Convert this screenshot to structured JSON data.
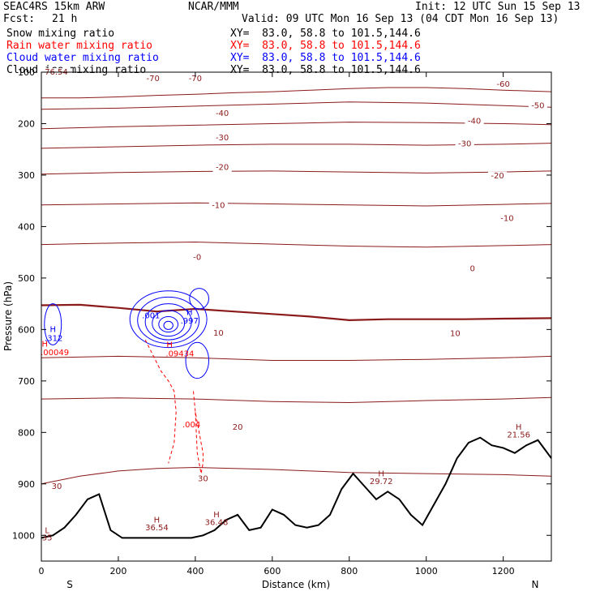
{
  "header": {
    "model": "SEAC4RS 15km ARW",
    "center": "NCAR/MMM",
    "init": "Init: 12 UTC Sun 15 Sep 13",
    "fcst_label": "Fcst:",
    "fcst_value": "21 h",
    "valid": "Valid: 09 UTC Mon 16 Sep 13 (04 CDT Mon 16 Sep 13)"
  },
  "fields": [
    {
      "name": "Snow mixing ratio",
      "xy": "XY=  83.0, 58.8 to 101.5,144.6",
      "color": "#000000"
    },
    {
      "name": "Rain water mixing ratio",
      "xy": "XY=  83.0, 58.8 to 101.5,144.6",
      "color": "#ff0000"
    },
    {
      "name": "Cloud water mixing ratio",
      "xy": "XY=  83.0, 58.8 to 101.5,144.6",
      "color": "#0000ff"
    },
    {
      "name": "Cloud ice mixing ratio",
      "xy": "XY=  83.0, 58.8 to 101.5,144.6",
      "color": "#000000"
    }
  ],
  "chart_data": {
    "type": "line",
    "xlabel": "Distance (km)",
    "ylabel": "Pressure (hPa)",
    "xlim": [
      0,
      1325
    ],
    "ylim": [
      1050,
      100
    ],
    "x_ticks": [
      0,
      200,
      400,
      600,
      800,
      1000,
      1200
    ],
    "y_ticks": [
      100,
      200,
      300,
      400,
      500,
      600,
      700,
      800,
      900,
      1000
    ],
    "y_tick_labels": [
      "100",
      "200",
      "300",
      "400",
      "500",
      "600",
      "700",
      "800",
      "900",
      "1000"
    ],
    "left_end_label": "S",
    "right_end_label": "N",
    "colors": {
      "temperature": "#8b1a1a",
      "terrain": "#000000",
      "rain": "#ff0000",
      "cloud_water": "#0000ff"
    },
    "temperature_contours": [
      {
        "level": -70,
        "label": "-70",
        "x": [
          0,
          100,
          200,
          300,
          400,
          500,
          600,
          700,
          800,
          900,
          1000,
          1100,
          1200,
          1325
        ],
        "p": [
          150,
          150,
          148,
          145,
          143,
          140,
          138,
          135,
          132,
          130,
          130,
          132,
          135,
          138
        ]
      },
      {
        "level": -60,
        "label": "-60",
        "x": [
          0,
          200,
          400,
          600,
          800,
          1000,
          1200,
          1325
        ],
        "p": [
          172,
          170,
          166,
          162,
          158,
          160,
          165,
          168
        ]
      },
      {
        "level": -50,
        "label": "-50",
        "x": [
          0,
          200,
          400,
          600,
          800,
          1000,
          1200,
          1325
        ],
        "p": [
          210,
          206,
          203,
          200,
          197,
          198,
          200,
          202
        ]
      },
      {
        "level": -40,
        "label": "-40",
        "x": [
          0,
          200,
          400,
          600,
          800,
          1000,
          1200,
          1325
        ],
        "p": [
          248,
          245,
          242,
          240,
          240,
          242,
          240,
          238
        ]
      },
      {
        "level": -30,
        "label": "-30",
        "x": [
          0,
          200,
          400,
          600,
          800,
          1000,
          1200,
          1325
        ],
        "p": [
          298,
          295,
          293,
          292,
          294,
          296,
          294,
          292
        ]
      },
      {
        "level": -20,
        "label": "-20",
        "x": [
          0,
          200,
          400,
          600,
          800,
          1000,
          1200,
          1325
        ],
        "p": [
          358,
          356,
          354,
          356,
          358,
          360,
          357,
          355
        ]
      },
      {
        "level": -10,
        "label": "-10",
        "x": [
          0,
          200,
          400,
          600,
          800,
          1000,
          1200,
          1325
        ],
        "p": [
          435,
          432,
          430,
          434,
          438,
          440,
          437,
          435
        ]
      },
      {
        "level": 0,
        "label": "0",
        "x": [
          0,
          100,
          200,
          300,
          400,
          500,
          600,
          700,
          800,
          900,
          1000,
          1100,
          1200,
          1325
        ],
        "p": [
          553,
          552,
          558,
          565,
          560,
          565,
          570,
          575,
          582,
          580,
          580,
          580,
          579,
          578
        ]
      },
      {
        "level": 10,
        "label": "10",
        "x": [
          0,
          200,
          400,
          600,
          800,
          1000,
          1200,
          1325
        ],
        "p": [
          655,
          652,
          655,
          660,
          660,
          658,
          655,
          652
        ]
      },
      {
        "level": 20,
        "label": "20",
        "x": [
          0,
          200,
          400,
          600,
          800,
          1000,
          1200,
          1325
        ],
        "p": [
          735,
          733,
          735,
          740,
          742,
          738,
          735,
          732
        ]
      },
      {
        "level": 30,
        "label": "30",
        "x": [
          0,
          100,
          200,
          300,
          400,
          500,
          600,
          700,
          800,
          1000,
          1200,
          1325
        ],
        "p": [
          900,
          885,
          875,
          870,
          868,
          870,
          872,
          875,
          878,
          880,
          882,
          885
        ]
      }
    ],
    "contour_labels": [
      {
        "text": "-76.54",
        "x": 35,
        "p": 105
      },
      {
        "text": "-70",
        "x": 290,
        "p": 117
      },
      {
        "text": "-70",
        "x": 400,
        "p": 117
      },
      {
        "text": "-60",
        "x": 1200,
        "p": 128
      },
      {
        "text": "-50",
        "x": 1290,
        "p": 170
      },
      {
        "text": "-40",
        "x": 470,
        "p": 185
      },
      {
        "text": "-40",
        "x": 1125,
        "p": 200
      },
      {
        "text": "-30",
        "x": 470,
        "p": 232
      },
      {
        "text": "-30",
        "x": 1100,
        "p": 244
      },
      {
        "text": "-20",
        "x": 470,
        "p": 290
      },
      {
        "text": "-20",
        "x": 1185,
        "p": 306
      },
      {
        "text": "-10",
        "x": 460,
        "p": 364
      },
      {
        "text": "-10",
        "x": 1210,
        "p": 389
      },
      {
        "text": "0",
        "x": 1120,
        "p": 487
      },
      {
        "text": "10",
        "x": 460,
        "p": 612
      },
      {
        "text": "10",
        "x": 1075,
        "p": 613
      },
      {
        "text": "20",
        "x": 510,
        "p": 795
      },
      {
        "text": "30",
        "x": 40,
        "p": 910
      },
      {
        "text": "30",
        "x": 420,
        "p": 895
      },
      {
        "text": "-0",
        "x": 405,
        "p": 465
      }
    ],
    "terrain": {
      "x": [
        0,
        30,
        60,
        90,
        120,
        150,
        180,
        210,
        240,
        270,
        300,
        330,
        360,
        390,
        420,
        450,
        480,
        510,
        540,
        570,
        600,
        630,
        660,
        690,
        720,
        750,
        780,
        810,
        840,
        870,
        900,
        930,
        960,
        990,
        1020,
        1050,
        1080,
        1110,
        1140,
        1170,
        1200,
        1230,
        1260,
        1290,
        1325
      ],
      "p": [
        1005,
        1000,
        985,
        960,
        930,
        920,
        990,
        1005,
        1005,
        1005,
        1005,
        1005,
        1005,
        1005,
        1000,
        990,
        970,
        960,
        990,
        985,
        950,
        960,
        980,
        985,
        980,
        960,
        910,
        880,
        905,
        930,
        915,
        930,
        960,
        980,
        940,
        900,
        850,
        820,
        810,
        825,
        830,
        840,
        825,
        815,
        850
      ]
    },
    "rain_contours": [
      {
        "x": [
          395,
          400,
          410,
          420,
          420,
          415,
          405,
          400
        ],
        "p": [
          720,
          760,
          800,
          840,
          860,
          880,
          840,
          760
        ]
      },
      {
        "x": [
          270,
          290,
          310,
          330,
          345,
          350,
          345,
          330
        ],
        "p": [
          620,
          650,
          680,
          700,
          720,
          760,
          820,
          860
        ]
      }
    ],
    "cloud_water_rings": [
      {
        "cx": 330,
        "cp": 580,
        "rx": 100,
        "rp": 55
      },
      {
        "cx": 330,
        "cp": 582,
        "rx": 80,
        "rp": 45
      },
      {
        "cx": 330,
        "cp": 585,
        "rx": 60,
        "rp": 35
      },
      {
        "cx": 330,
        "cp": 588,
        "rx": 42,
        "rp": 25
      },
      {
        "cx": 330,
        "cp": 590,
        "rx": 25,
        "rp": 15
      },
      {
        "cx": 330,
        "cp": 592,
        "rx": 12,
        "rp": 8
      },
      {
        "cx": 30,
        "cp": 590,
        "rx": 22,
        "rp": 40
      },
      {
        "cx": 410,
        "cp": 540,
        "rx": 25,
        "rp": 20
      },
      {
        "cx": 405,
        "cp": 660,
        "rx": 30,
        "rp": 35
      }
    ],
    "point_labels": [
      {
        "text": "H",
        "x": 30,
        "p": 605,
        "color": "#0000ff"
      },
      {
        "text": ".312",
        "x": 32,
        "p": 622,
        "color": "#0000ff"
      },
      {
        "text": ".001",
        "x": 285,
        "p": 578,
        "color": "#0000ff"
      },
      {
        "text": "H",
        "x": 385,
        "p": 572,
        "color": "#0000ff"
      },
      {
        "text": ".997",
        "x": 385,
        "p": 588,
        "color": "#0000ff"
      },
      {
        "text": "H",
        "x": 9,
        "p": 633,
        "color": "#ff0000"
      },
      {
        "text": ".00049",
        "x": 35,
        "p": 650,
        "color": "#ff0000"
      },
      {
        "text": "H",
        "x": 333,
        "p": 635,
        "color": "#ff0000"
      },
      {
        "text": ".09434",
        "x": 360,
        "p": 652,
        "color": "#ff0000"
      },
      {
        "text": ".004",
        "x": 390,
        "p": 790,
        "color": "#ff0000"
      },
      {
        "text": "H",
        "x": 300,
        "p": 975,
        "color": "#8b1a1a"
      },
      {
        "text": "36.54",
        "x": 300,
        "p": 990,
        "color": "#8b1a1a"
      },
      {
        "text": "H",
        "x": 455,
        "p": 965,
        "color": "#8b1a1a"
      },
      {
        "text": "36.48",
        "x": 455,
        "p": 980,
        "color": "#8b1a1a"
      },
      {
        "text": "H",
        "x": 883,
        "p": 885,
        "color": "#8b1a1a"
      },
      {
        "text": "29.72",
        "x": 883,
        "p": 900,
        "color": "#8b1a1a"
      },
      {
        "text": "H",
        "x": 1240,
        "p": 795,
        "color": "#8b1a1a"
      },
      {
        "text": "21.56",
        "x": 1240,
        "p": 810,
        "color": "#8b1a1a"
      },
      {
        "text": "L",
        "x": 15,
        "p": 996,
        "color": "#8b1a1a"
      },
      {
        "text": "35",
        "x": 15,
        "p": 1010,
        "color": "#8b1a1a"
      }
    ]
  }
}
